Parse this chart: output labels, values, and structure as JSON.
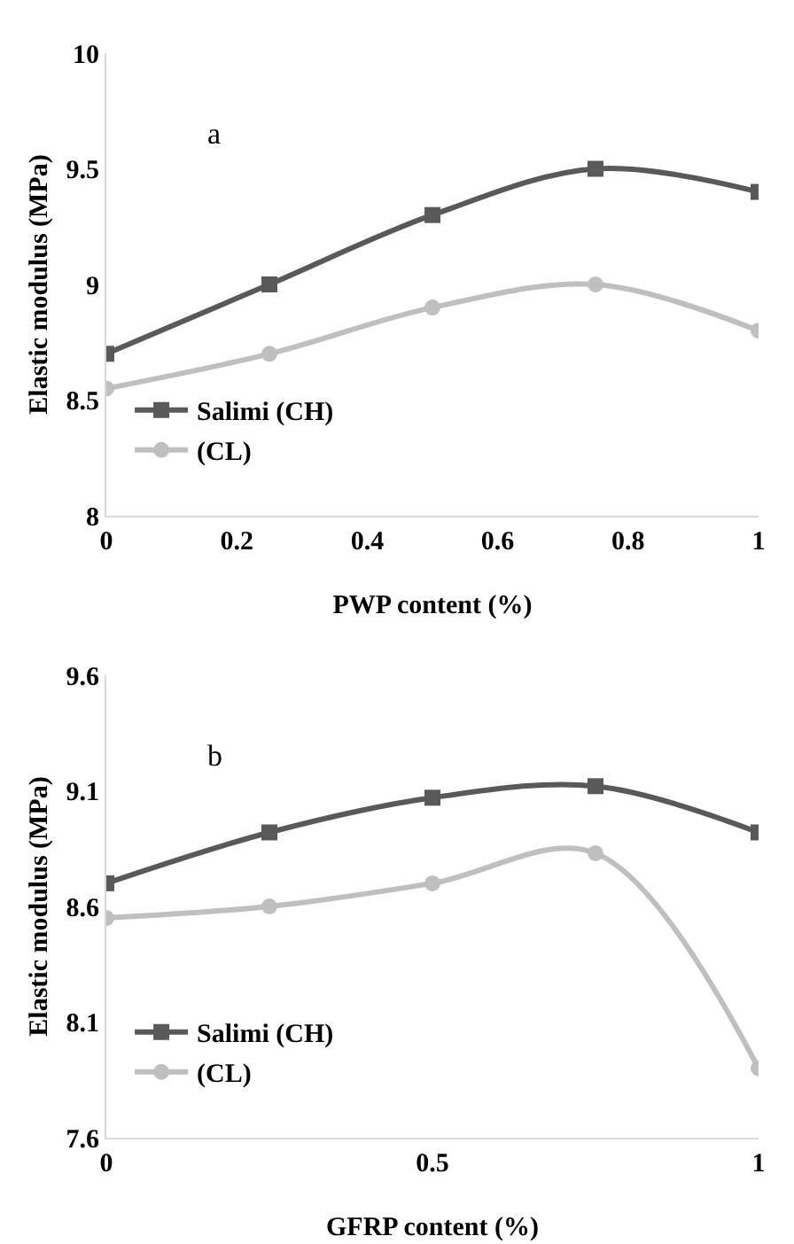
{
  "chart_data": [
    {
      "type": "line",
      "annotations": [
        "a"
      ],
      "xlabel": "PWP content (%)",
      "ylabel": "Elastic modulus (MPa)",
      "x": [
        0,
        0.25,
        0.5,
        0.75,
        1
      ],
      "xlim": [
        0,
        1
      ],
      "xticks": [
        0,
        0.2,
        0.4,
        0.6,
        0.8,
        1
      ],
      "ylim": [
        8,
        10
      ],
      "yticks": [
        8,
        8.5,
        9,
        9.5,
        10
      ],
      "grid": false,
      "legend": "bottom left",
      "series": [
        {
          "name": "Salimi (CH)",
          "color": "#595959",
          "marker": "square",
          "values": [
            8.7,
            9.0,
            9.3,
            9.5,
            9.4
          ]
        },
        {
          "name": "(CL)",
          "color": "#bfbfbf",
          "marker": "circle",
          "values": [
            8.55,
            8.7,
            8.9,
            9.0,
            8.8
          ]
        }
      ]
    },
    {
      "type": "line",
      "annotations": [
        "b"
      ],
      "xlabel": "GFRP content (%)",
      "ylabel": "Elastic modulus (MPa)",
      "x": [
        0,
        0.25,
        0.5,
        0.75,
        1
      ],
      "xlim": [
        0,
        1
      ],
      "xticks": [
        0,
        0.5,
        1
      ],
      "ylim": [
        7.6,
        9.6
      ],
      "yticks": [
        7.6,
        8.1,
        8.6,
        9.1,
        9.6
      ],
      "grid": false,
      "legend": "bottom left",
      "series": [
        {
          "name": "Salimi (CH)",
          "color": "#595959",
          "marker": "square",
          "values": [
            8.7,
            8.92,
            9.07,
            9.12,
            8.92
          ]
        },
        {
          "name": "(CL)",
          "color": "#bfbfbf",
          "marker": "circle",
          "values": [
            8.55,
            8.6,
            8.7,
            8.83,
            7.9
          ]
        }
      ]
    }
  ]
}
